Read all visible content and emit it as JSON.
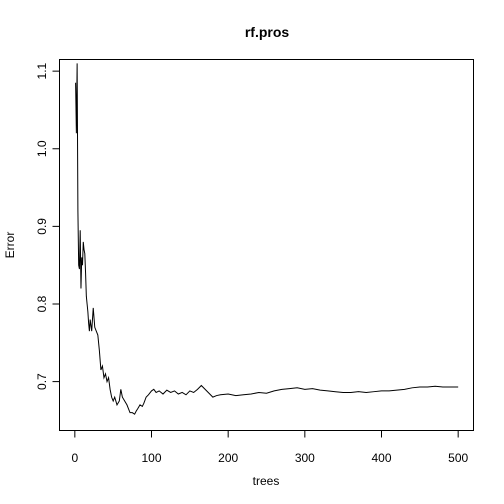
{
  "chart_data": {
    "type": "line",
    "title": "rf.pros",
    "xlabel": "trees",
    "ylabel": "Error",
    "xlim": [
      -20,
      520
    ],
    "ylim": [
      0.637,
      1.115
    ],
    "xticks": [
      0,
      100,
      200,
      300,
      400,
      500
    ],
    "yticks": [
      0.7,
      0.8,
      0.9,
      1.0,
      1.1
    ],
    "ytick_labels": [
      "0.7",
      "0.8",
      "0.9",
      "1.0",
      "1.1"
    ],
    "grid": false,
    "legend": "none",
    "line_color": "#000000",
    "series": [
      {
        "x": [
          1,
          2,
          3,
          4,
          5,
          6,
          7,
          8,
          9,
          10,
          11,
          12,
          13,
          14,
          15,
          16,
          17,
          18,
          19,
          20,
          22,
          24,
          26,
          28,
          30,
          32,
          34,
          36,
          38,
          40,
          42,
          44,
          46,
          48,
          50,
          52,
          55,
          58,
          60,
          62,
          65,
          68,
          70,
          72,
          75,
          78,
          80,
          82,
          85,
          88,
          90,
          93,
          96,
          100,
          103,
          106,
          110,
          115,
          120,
          125,
          130,
          135,
          140,
          145,
          150,
          155,
          160,
          165,
          170,
          175,
          180,
          185,
          190,
          200,
          210,
          220,
          230,
          240,
          250,
          260,
          270,
          280,
          290,
          300,
          310,
          320,
          330,
          340,
          350,
          360,
          370,
          380,
          390,
          400,
          410,
          420,
          430,
          440,
          450,
          460,
          470,
          480,
          490,
          500
        ],
        "values": [
          1.085,
          1.02,
          1.11,
          0.92,
          0.85,
          0.845,
          0.895,
          0.82,
          0.86,
          0.85,
          0.88,
          0.87,
          0.865,
          0.84,
          0.81,
          0.8,
          0.79,
          0.775,
          0.765,
          0.78,
          0.765,
          0.795,
          0.77,
          0.765,
          0.76,
          0.74,
          0.715,
          0.72,
          0.705,
          0.71,
          0.7,
          0.705,
          0.69,
          0.68,
          0.675,
          0.68,
          0.67,
          0.675,
          0.69,
          0.68,
          0.675,
          0.67,
          0.665,
          0.66,
          0.66,
          0.658,
          0.662,
          0.665,
          0.67,
          0.668,
          0.672,
          0.68,
          0.683,
          0.688,
          0.69,
          0.686,
          0.688,
          0.684,
          0.689,
          0.686,
          0.688,
          0.684,
          0.686,
          0.683,
          0.688,
          0.686,
          0.69,
          0.695,
          0.69,
          0.685,
          0.68,
          0.682,
          0.683,
          0.684,
          0.682,
          0.683,
          0.684,
          0.686,
          0.685,
          0.688,
          0.69,
          0.691,
          0.692,
          0.69,
          0.691,
          0.689,
          0.688,
          0.687,
          0.686,
          0.686,
          0.687,
          0.686,
          0.687,
          0.688,
          0.688,
          0.689,
          0.69,
          0.692,
          0.693,
          0.693,
          0.694,
          0.693,
          0.693,
          0.693
        ]
      }
    ]
  }
}
